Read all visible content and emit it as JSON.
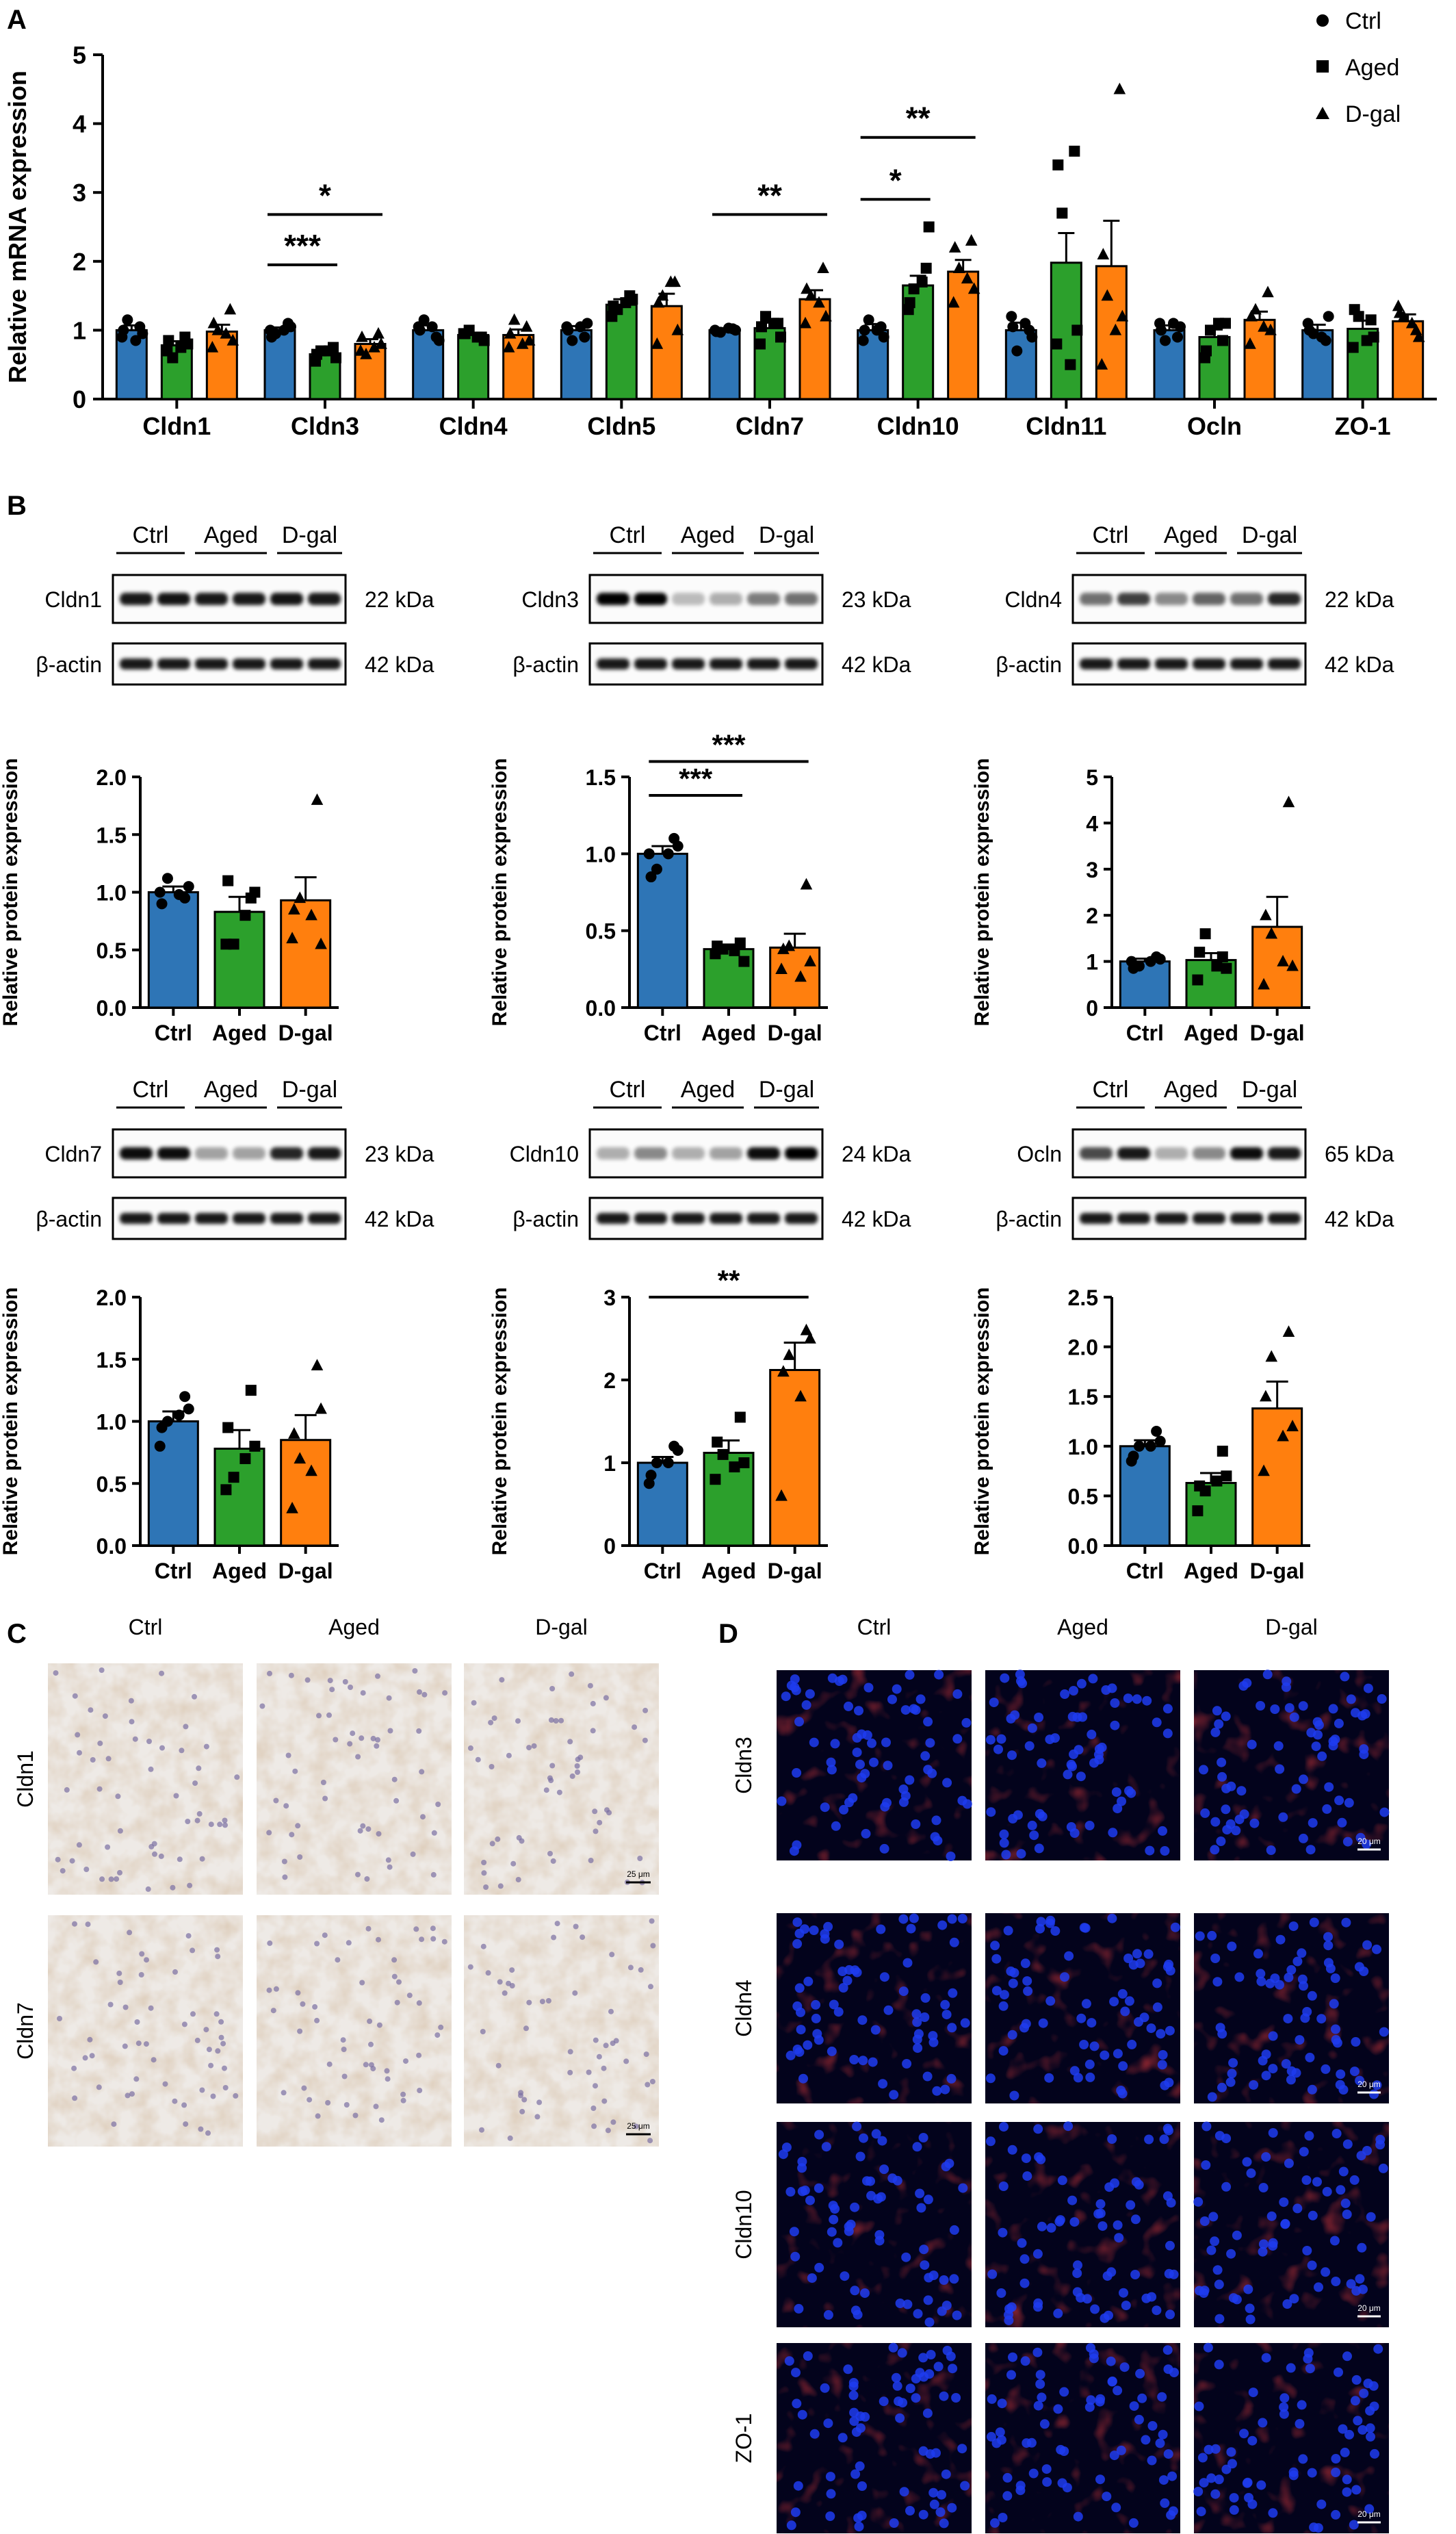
{
  "colors": {
    "Ctrl": "#2e75b6",
    "Aged": "#2ca02c",
    "D-gal": "#ff7f0e",
    "pt": "#000000",
    "ihc_bg": "#eeeae6",
    "if_bg": "#03031c"
  },
  "panels": {
    "A": "A",
    "B": "B",
    "C": "C",
    "D": "D"
  },
  "groups": [
    "Ctrl",
    "Aged",
    "D-gal"
  ],
  "panel_a": {
    "legend": [
      "Ctrl",
      "Aged",
      "D-gal"
    ],
    "ylabel": "Relative mRNA expression",
    "yticks": [
      "0",
      "1",
      "2",
      "3",
      "4",
      "5"
    ]
  },
  "blots": [
    {
      "protein": "Cldn1",
      "kda": "22 kDa",
      "actin": "β-actin",
      "actin_kda": "42 kDa",
      "intensity": [
        0.9,
        0.92,
        0.9,
        0.9,
        0.92,
        0.9
      ]
    },
    {
      "protein": "Cldn3",
      "kda": "23 kDa",
      "actin": "β-actin",
      "actin_kda": "42 kDa",
      "intensity": [
        1,
        1,
        0.25,
        0.3,
        0.5,
        0.55
      ]
    },
    {
      "protein": "Cldn4",
      "kda": "22 kDa",
      "actin": "β-actin",
      "actin_kda": "42 kDa",
      "intensity": [
        0.55,
        0.75,
        0.45,
        0.6,
        0.55,
        0.85
      ]
    },
    {
      "protein": "Cldn7",
      "kda": "23 kDa",
      "actin": "β-actin",
      "actin_kda": "42 kDa",
      "intensity": [
        0.95,
        0.95,
        0.35,
        0.35,
        0.85,
        0.9
      ]
    },
    {
      "protein": "Cldn10",
      "kda": "24 kDa",
      "actin": "β-actin",
      "actin_kda": "42 kDa",
      "intensity": [
        0.3,
        0.45,
        0.3,
        0.35,
        0.95,
        1
      ]
    },
    {
      "protein": "Ocln",
      "kda": "65 kDa",
      "actin": "β-actin",
      "actin_kda": "42 kDa",
      "intensity": [
        0.7,
        0.9,
        0.3,
        0.45,
        0.95,
        0.9
      ]
    }
  ],
  "ylabel_b": "Relative protein expression",
  "panel_c": {
    "cols": [
      "Ctrl",
      "Aged",
      "D-gal"
    ],
    "rows": [
      "Cldn1",
      "Cldn7"
    ],
    "scalebar": "25 μm"
  },
  "panel_d": {
    "cols": [
      "Ctrl",
      "Aged",
      "D-gal"
    ],
    "rows": [
      "Cldn3",
      "Cldn4",
      "Cldn10",
      "ZO-1"
    ],
    "scalebar": "20 μm"
  },
  "chart_data": [
    {
      "type": "bar",
      "title": "",
      "ylabel": "Relative mRNA expression",
      "ylim": [
        0,
        5
      ],
      "categories": [
        "Cldn1",
        "Cldn3",
        "Cldn4",
        "Cldn5",
        "Cldn7",
        "Cldn10",
        "Cldn11",
        "Ocln",
        "ZO-1"
      ],
      "series": [
        {
          "name": "Ctrl",
          "values": [
            1.0,
            1.0,
            1.0,
            1.0,
            1.0,
            1.0,
            1.0,
            1.0,
            1.0
          ],
          "sem": [
            0.07,
            0.04,
            0.07,
            0.06,
            0.03,
            0.09,
            0.11,
            0.07,
            0.08
          ],
          "points": [
            [
              0.9,
              1.05,
              1.15,
              0.95,
              1.0,
              0.85
            ],
            [
              1.0,
              1.1,
              0.95,
              1.05,
              0.9,
              1.0
            ],
            [
              1.05,
              0.9,
              1.15,
              0.85,
              1.0,
              1.05
            ],
            [
              1.05,
              0.9,
              0.85,
              1.1,
              1.0,
              1.05
            ],
            [
              1.0,
              1.02,
              0.97,
              1.0,
              0.98,
              1.03
            ],
            [
              0.85,
              1.05,
              1.15,
              0.9,
              1.0,
              1.0
            ],
            [
              1.2,
              1.0,
              0.7,
              0.9,
              1.05,
              1.1
            ],
            [
              1.1,
              0.9,
              0.85,
              1.05,
              1.0,
              1.1
            ],
            [
              1.1,
              0.85,
              0.95,
              1.2,
              1.0,
              0.9
            ]
          ]
        },
        {
          "name": "Aged",
          "values": [
            0.78,
            0.65,
            0.93,
            1.37,
            1.03,
            1.65,
            1.98,
            0.9,
            1.02
          ],
          "sem": [
            0.06,
            0.06,
            0.03,
            0.08,
            0.08,
            0.14,
            0.43,
            0.11,
            0.12
          ],
          "points": [
            [
              0.7,
              0.9,
              0.6,
              0.8,
              0.85,
              0.75
            ],
            [
              0.55,
              0.75,
              0.7,
              0.6,
              0.65,
              0.7
            ],
            [
              0.95,
              0.9,
              1.0,
              0.85,
              0.95,
              0.9
            ],
            [
              1.2,
              1.5,
              1.3,
              1.45,
              1.35,
              1.4
            ],
            [
              0.8,
              1.1,
              1.2,
              0.9,
              1.05,
              1.1
            ],
            [
              1.3,
              1.9,
              1.6,
              2.5,
              1.4,
              1.7
            ],
            [
              0.8,
              3.6,
              2.7,
              1.0,
              3.4,
              0.5
            ],
            [
              0.6,
              0.85,
              1.0,
              1.1,
              0.7,
              1.1
            ],
            [
              0.75,
              1.15,
              1.2,
              0.9,
              1.3,
              0.85
            ]
          ]
        },
        {
          "name": "D-gal",
          "values": [
            0.98,
            0.8,
            0.93,
            1.35,
            1.45,
            1.85,
            1.93,
            1.15,
            1.13
          ],
          "sem": [
            0.1,
            0.07,
            0.08,
            0.18,
            0.13,
            0.17,
            0.66,
            0.12,
            0.1
          ],
          "points": [
            [
              0.75,
              1.3,
              1.0,
              0.85,
              1.1,
              0.95
            ],
            [
              0.7,
              0.95,
              0.65,
              0.8,
              0.9,
              0.75
            ],
            [
              0.75,
              1.05,
              1.15,
              0.85,
              0.95,
              0.8
            ],
            [
              0.8,
              1.7,
              1.5,
              1.0,
              1.4,
              1.7
            ],
            [
              1.1,
              1.9,
              1.5,
              1.2,
              1.6,
              1.4
            ],
            [
              1.4,
              2.3,
              1.9,
              1.6,
              2.2,
              1.75
            ],
            [
              0.5,
              4.5,
              1.5,
              1.2,
              2.1,
              1.0
            ],
            [
              0.8,
              1.55,
              1.3,
              1.0,
              1.2,
              1.05
            ],
            [
              1.35,
              1.0,
              1.2,
              0.9,
              1.25,
              1.1
            ]
          ]
        }
      ],
      "significance": [
        {
          "category": "Cldn3",
          "from": 0,
          "to": 1,
          "label": "***",
          "y": 1.95
        },
        {
          "category": "Cldn3",
          "from": 0,
          "to": 2,
          "label": "*",
          "y": 2.68
        },
        {
          "category": "Cldn7",
          "from": 0,
          "to": 2,
          "label": "**",
          "y": 2.68
        },
        {
          "category": "Cldn10",
          "from": 0,
          "to": 1,
          "label": "*",
          "y": 2.9
        },
        {
          "category": "Cldn10",
          "from": 0,
          "to": 2,
          "label": "**",
          "y": 3.8
        }
      ]
    },
    {
      "type": "bar",
      "protein": "Cldn1",
      "ylabel": "Relative protein expression",
      "ylim": [
        0,
        2.0
      ],
      "yticks": [
        "0.0",
        "0.5",
        "1.0",
        "1.5",
        "2.0"
      ],
      "categories": [
        "Ctrl",
        "Aged",
        "D-gal"
      ],
      "values": [
        1.0,
        0.83,
        0.93
      ],
      "sem": [
        0.05,
        0.13,
        0.2
      ],
      "points": [
        [
          1.0,
          0.95,
          1.12,
          1.05,
          0.9,
          0.98
        ],
        [
          0.55,
          0.95,
          0.55,
          1.0,
          1.1,
          0.8
        ],
        [
          0.6,
          1.8,
          0.95,
          0.55,
          0.85,
          0.8
        ]
      ],
      "significance": []
    },
    {
      "type": "bar",
      "protein": "Cldn3",
      "ylabel": "Relative protein expression",
      "ylim": [
        0,
        1.5
      ],
      "yticks": [
        "0.0",
        "0.5",
        "1.0",
        "1.5"
      ],
      "categories": [
        "Ctrl",
        "Aged",
        "D-gal"
      ],
      "values": [
        1.0,
        0.38,
        0.39
      ],
      "sem": [
        0.05,
        0.03,
        0.09
      ],
      "points": [
        [
          1.0,
          1.1,
          0.9,
          1.05,
          0.85,
          1.0
        ],
        [
          0.35,
          0.42,
          0.38,
          0.3,
          0.4,
          0.37
        ],
        [
          0.25,
          0.8,
          0.4,
          0.3,
          0.38,
          0.2
        ]
      ],
      "significance": [
        {
          "from": 0,
          "to": 1,
          "label": "***",
          "y": 1.38
        },
        {
          "from": 0,
          "to": 2,
          "label": "***",
          "y": 1.6
        }
      ]
    },
    {
      "type": "bar",
      "protein": "Cldn4",
      "ylabel": "Relative protein expression",
      "ylim": [
        0,
        5
      ],
      "yticks": [
        "0",
        "1",
        "2",
        "3",
        "4",
        "5"
      ],
      "categories": [
        "Ctrl",
        "Aged",
        "D-gal"
      ],
      "values": [
        1.0,
        1.03,
        1.75
      ],
      "sem": [
        0.06,
        0.15,
        0.65
      ],
      "points": [
        [
          1.0,
          1.1,
          0.9,
          1.05,
          0.85,
          1.0
        ],
        [
          0.6,
          1.1,
          1.6,
          0.85,
          1.2,
          0.9
        ],
        [
          0.5,
          4.45,
          1.6,
          0.9,
          2.0,
          1.0
        ]
      ],
      "significance": []
    },
    {
      "type": "bar",
      "protein": "Cldn7",
      "ylabel": "Relative protein expression",
      "ylim": [
        0,
        2.0
      ],
      "yticks": [
        "0.0",
        "0.5",
        "1.0",
        "1.5",
        "2.0"
      ],
      "categories": [
        "Ctrl",
        "Aged",
        "D-gal"
      ],
      "values": [
        1.0,
        0.78,
        0.85
      ],
      "sem": [
        0.08,
        0.15,
        0.2
      ],
      "points": [
        [
          0.8,
          1.2,
          1.0,
          1.1,
          0.95,
          1.05
        ],
        [
          0.45,
          1.25,
          0.55,
          0.8,
          0.95,
          0.7
        ],
        [
          0.3,
          1.45,
          0.7,
          1.1,
          0.9,
          0.6
        ]
      ],
      "significance": []
    },
    {
      "type": "bar",
      "protein": "Cldn10",
      "ylabel": "Relative protein expression",
      "ylim": [
        0,
        3
      ],
      "yticks": [
        "0",
        "1",
        "2",
        "3"
      ],
      "categories": [
        "Ctrl",
        "Aged",
        "D-gal"
      ],
      "values": [
        1.0,
        1.12,
        2.12
      ],
      "sem": [
        0.07,
        0.15,
        0.33
      ],
      "points": [
        [
          0.75,
          1.2,
          1.0,
          1.15,
          0.85,
          1.0
        ],
        [
          0.8,
          1.55,
          1.1,
          1.0,
          1.25,
          0.95
        ],
        [
          0.6,
          2.6,
          2.3,
          2.5,
          2.1,
          1.8
        ]
      ],
      "significance": [
        {
          "from": 0,
          "to": 2,
          "label": "**",
          "y": 3.0
        }
      ]
    },
    {
      "type": "bar",
      "protein": "Ocln",
      "ylabel": "Relative protein expression",
      "ylim": [
        0,
        2.5
      ],
      "yticks": [
        "0.0",
        "0.5",
        "1.0",
        "1.5",
        "2.0",
        "2.5"
      ],
      "categories": [
        "Ctrl",
        "Aged",
        "D-gal"
      ],
      "values": [
        1.0,
        0.63,
        1.38
      ],
      "sem": [
        0.06,
        0.1,
        0.27
      ],
      "points": [
        [
          0.85,
          1.15,
          1.0,
          1.05,
          0.9,
          1.0
        ],
        [
          0.35,
          0.95,
          0.55,
          0.7,
          0.6,
          0.65
        ],
        [
          0.75,
          2.15,
          1.9,
          1.2,
          1.5,
          1.1
        ]
      ],
      "significance": []
    }
  ]
}
